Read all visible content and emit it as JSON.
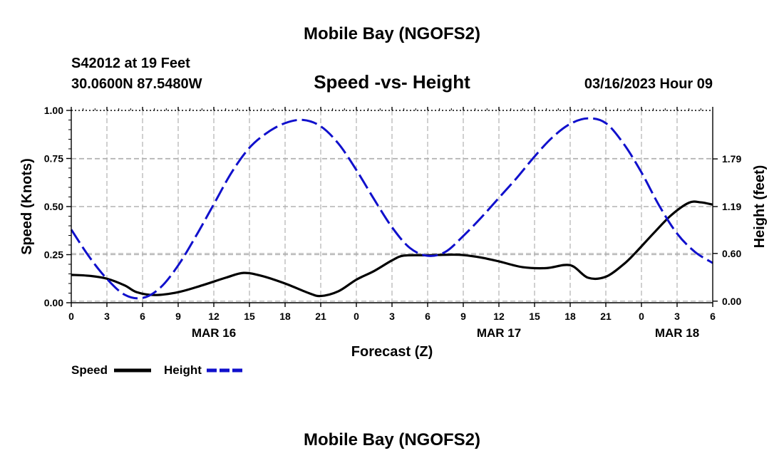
{
  "header": {
    "title": "Mobile Bay (NGOFS2)",
    "station": "S42012 at 19 Feet",
    "coords": "30.0600N  87.5480W",
    "timestamp": "03/16/2023 Hour 09"
  },
  "footer": {
    "title": "Mobile Bay (NGOFS2)"
  },
  "chart_data": {
    "type": "line",
    "title": "Speed -vs- Height",
    "xlabel": "Forecast (Z)",
    "ylabel": "Speed (Knots)",
    "y2label": "Height (feet)",
    "xlim": [
      0,
      54
    ],
    "ylim": [
      0,
      1
    ],
    "y2lim": [
      -0.02,
      2.4
    ],
    "x_ticks": [
      0,
      3,
      6,
      9,
      12,
      15,
      18,
      21,
      24,
      27,
      30,
      33,
      36,
      39,
      42,
      45,
      48,
      51,
      54
    ],
    "x_tick_labels": [
      "0",
      "3",
      "6",
      "9",
      "12",
      "15",
      "18",
      "21",
      "0",
      "3",
      "6",
      "9",
      "12",
      "15",
      "18",
      "21",
      "0",
      "3",
      "6"
    ],
    "y_ticks": [
      0,
      0.25,
      0.5,
      0.75,
      1.0
    ],
    "y_tick_labels": [
      "0.00",
      "0.25",
      "0.50",
      "0.75",
      "1.00"
    ],
    "y2_ticks": [
      0.0,
      0.6,
      1.19,
      1.79
    ],
    "y2_tick_labels": [
      "0.00",
      "0.60",
      "1.19",
      "1.79"
    ],
    "date_labels": [
      {
        "x": 12,
        "label": "MAR 16"
      },
      {
        "x": 36,
        "label": "MAR 17"
      },
      {
        "x": 51,
        "label": "MAR 18"
      }
    ],
    "legend": [
      {
        "name": "Speed",
        "color": "#000000",
        "style": "solid"
      },
      {
        "name": "Height",
        "color": "#1010cc",
        "style": "dashed"
      }
    ],
    "legend_position": "bottom-left",
    "series": [
      {
        "name": "Speed",
        "axis": "left",
        "color": "#000000",
        "x": [
          0,
          1.5,
          3,
          4.5,
          5.5,
          7,
          9,
          11,
          13,
          14.5,
          16,
          18,
          20,
          21,
          22.5,
          24,
          25.5,
          27,
          28,
          30,
          32,
          33,
          34.5,
          36,
          38,
          40,
          42,
          43.5,
          45,
          46.5,
          47.5,
          49,
          50.5,
          52,
          53,
          54
        ],
        "y": [
          0.145,
          0.14,
          0.125,
          0.09,
          0.055,
          0.04,
          0.055,
          0.09,
          0.13,
          0.155,
          0.14,
          0.1,
          0.05,
          0.035,
          0.06,
          0.12,
          0.165,
          0.22,
          0.245,
          0.247,
          0.25,
          0.248,
          0.235,
          0.215,
          0.185,
          0.18,
          0.195,
          0.13,
          0.135,
          0.2,
          0.26,
          0.36,
          0.455,
          0.52,
          0.522,
          0.51
        ]
      },
      {
        "name": "Height",
        "axis": "right",
        "color": "#1010cc",
        "x": [
          0,
          1.5,
          3,
          4.5,
          6,
          7.5,
          9,
          10.5,
          12,
          13.5,
          15,
          16.5,
          18,
          19.5,
          21,
          22.5,
          24,
          25.5,
          27,
          28.5,
          30,
          31.5,
          33,
          34.5,
          36,
          37.5,
          39,
          40.5,
          42,
          43.5,
          45,
          46.5,
          48,
          49.5,
          51,
          52.5,
          54
        ],
        "y": [
          0.9,
          0.56,
          0.28,
          0.08,
          0.04,
          0.17,
          0.45,
          0.82,
          1.22,
          1.62,
          1.93,
          2.12,
          2.24,
          2.28,
          2.2,
          1.98,
          1.65,
          1.28,
          0.93,
          0.67,
          0.57,
          0.62,
          0.82,
          1.05,
          1.3,
          1.55,
          1.82,
          2.06,
          2.23,
          2.3,
          2.24,
          1.98,
          1.62,
          1.2,
          0.85,
          0.62,
          0.48
        ]
      }
    ]
  }
}
